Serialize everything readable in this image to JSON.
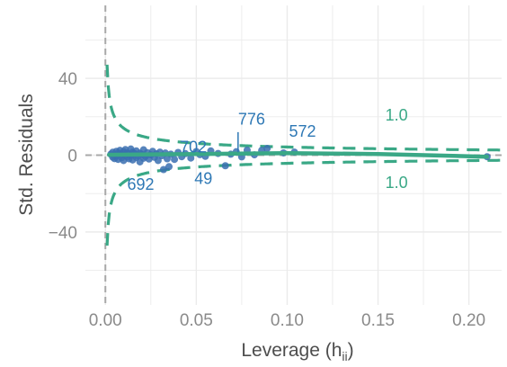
{
  "chart_data": {
    "type": "scatter",
    "title": "",
    "xlabel": "Leverage (h",
    "xlabel_sub": "ii",
    "xlabel_close": ")",
    "ylabel": "Std. Residuals",
    "xlim": [
      -0.011,
      0.218
    ],
    "ylim": [
      -78,
      78
    ],
    "xticks": [
      0.0,
      0.05,
      0.1,
      0.15,
      0.2
    ],
    "xtick_labels": [
      "0.00",
      "0.05",
      "0.10",
      "0.15",
      "0.20"
    ],
    "yticks": [
      -40,
      0,
      40
    ],
    "ytick_labels": [
      "−40",
      "0",
      "40"
    ],
    "grid": true,
    "colors": {
      "points": "#3a6fb0",
      "smooth": "#3aa886",
      "contour": "#3aa886",
      "reference": "#a8a8a8",
      "labels": "#2e78b5"
    },
    "points": [
      [
        0.003,
        0.5
      ],
      [
        0.004,
        -1.0
      ],
      [
        0.004,
        1.5
      ],
      [
        0.005,
        0.2
      ],
      [
        0.005,
        -1.8
      ],
      [
        0.006,
        2.0
      ],
      [
        0.006,
        -0.5
      ],
      [
        0.007,
        1.0
      ],
      [
        0.007,
        -2.2
      ],
      [
        0.008,
        0.8
      ],
      [
        0.008,
        2.5
      ],
      [
        0.009,
        -1.3
      ],
      [
        0.009,
        0.3
      ],
      [
        0.01,
        1.8
      ],
      [
        0.01,
        -2.8
      ],
      [
        0.011,
        0.0
      ],
      [
        0.011,
        2.9
      ],
      [
        0.012,
        -0.9
      ],
      [
        0.012,
        1.2
      ],
      [
        0.013,
        -1.9
      ],
      [
        0.013,
        0.6
      ],
      [
        0.014,
        3.2
      ],
      [
        0.014,
        -0.2
      ],
      [
        0.015,
        1.5
      ],
      [
        0.015,
        -2.5
      ],
      [
        0.016,
        0.9
      ],
      [
        0.017,
        -1.2
      ],
      [
        0.017,
        2.2
      ],
      [
        0.018,
        -0.4
      ],
      [
        0.019,
        1.0
      ],
      [
        0.019,
        -3.5
      ],
      [
        0.02,
        0.4
      ],
      [
        0.021,
        -1.6
      ],
      [
        0.021,
        2.8
      ],
      [
        0.022,
        -0.7
      ],
      [
        0.023,
        1.3
      ],
      [
        0.024,
        -2.0
      ],
      [
        0.025,
        0.2
      ],
      [
        0.026,
        2.0
      ],
      [
        0.027,
        -1.1
      ],
      [
        0.028,
        0.7
      ],
      [
        0.029,
        -2.8
      ],
      [
        0.03,
        1.6
      ],
      [
        0.031,
        -0.3
      ],
      [
        0.032,
        -7.5
      ],
      [
        0.033,
        1.1
      ],
      [
        0.034,
        -1.9
      ],
      [
        0.035,
        -6.0
      ],
      [
        0.036,
        0.5
      ],
      [
        0.038,
        -2.2
      ],
      [
        0.04,
        1.4
      ],
      [
        0.042,
        -0.8
      ],
      [
        0.044,
        0.8
      ],
      [
        0.047,
        -1.5
      ],
      [
        0.05,
        1.9
      ],
      [
        0.052,
        0.3
      ],
      [
        0.055,
        -0.6
      ],
      [
        0.058,
        2.2
      ],
      [
        0.062,
        0.9
      ],
      [
        0.066,
        -5.5
      ],
      [
        0.069,
        0.5
      ],
      [
        0.072,
        1.8
      ],
      [
        0.075,
        -0.9
      ],
      [
        0.078,
        2.6
      ],
      [
        0.082,
        0.2
      ],
      [
        0.086,
        2.5
      ],
      [
        0.089,
        3.5
      ],
      [
        0.098,
        1.2
      ],
      [
        0.104,
        1.6
      ],
      [
        0.21,
        -0.8
      ]
    ],
    "smooth_line": [
      [
        0.002,
        0.2
      ],
      [
        0.05,
        0.6
      ],
      [
        0.1,
        1.1
      ],
      [
        0.15,
        0.6
      ],
      [
        0.21,
        -0.8
      ]
    ],
    "cooks_contours": [
      {
        "label": "1.0",
        "side": "upper",
        "label_x": 0.154,
        "label_y": 18
      },
      {
        "label": "1.0",
        "side": "lower",
        "label_x": 0.154,
        "label_y": -17
      }
    ],
    "annotations": [
      {
        "text": "776",
        "x": 0.073,
        "y": 16,
        "px": 0.073,
        "py": 12
      },
      {
        "text": "572",
        "x": 0.101,
        "y": 9.5
      },
      {
        "text": "702",
        "x": 0.041,
        "y": 1.5
      },
      {
        "text": "692",
        "x": 0.012,
        "y": -18
      },
      {
        "text": "49",
        "x": 0.049,
        "y": -15
      }
    ]
  }
}
